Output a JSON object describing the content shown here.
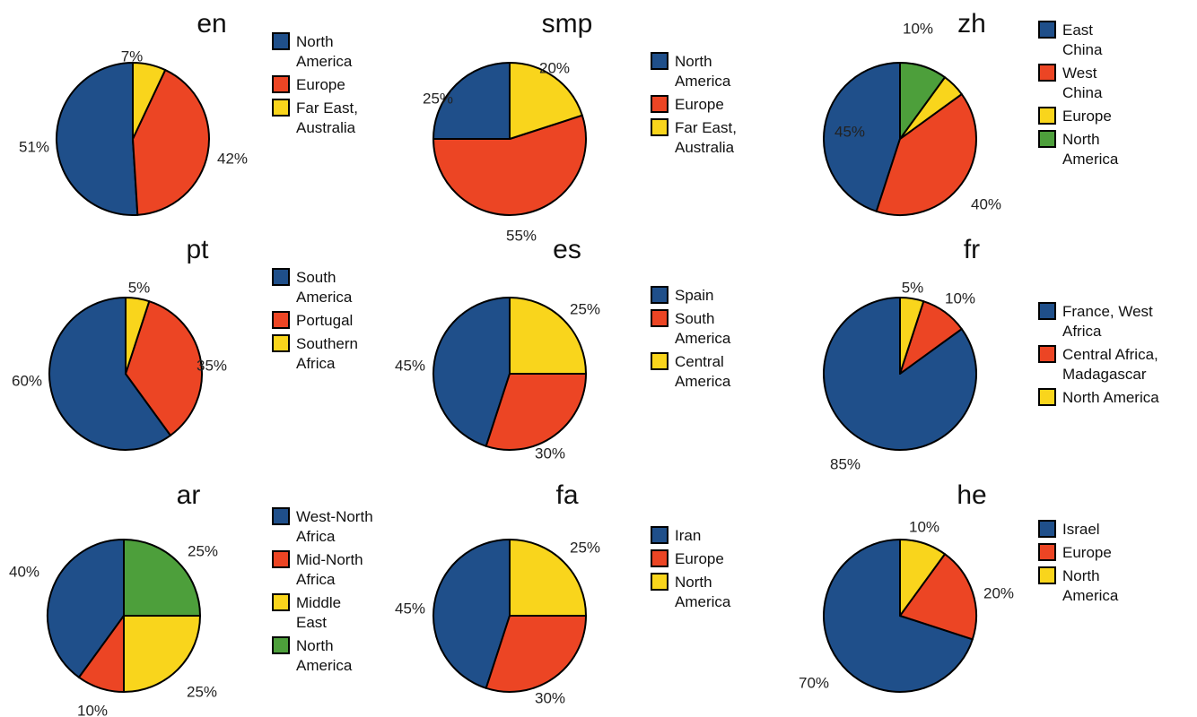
{
  "colors": {
    "blue": "#1f4f8a",
    "red": "#ec4524",
    "yellow": "#f9d51c",
    "green": "#4d9f3b"
  },
  "chart_data": [
    {
      "type": "pie",
      "title": "en",
      "slices": [
        {
          "label": "North America",
          "value": 51,
          "color": "blue",
          "display": "51%"
        },
        {
          "label": "Europe",
          "value": 42,
          "color": "red",
          "display": "42%"
        },
        {
          "label": "Far East, Australia",
          "value": 7,
          "color": "yellow",
          "display": "7%"
        }
      ],
      "legend": [
        {
          "lines": [
            "North",
            "America"
          ],
          "color": "blue"
        },
        {
          "lines": [
            "Europe"
          ],
          "color": "red"
        },
        {
          "lines": [
            "Far East,",
            "Australia"
          ],
          "color": "yellow"
        }
      ]
    },
    {
      "type": "pie",
      "title": "smp",
      "slices": [
        {
          "label": "North America",
          "value": 25,
          "color": "blue",
          "display": "25%"
        },
        {
          "label": "Europe",
          "value": 55,
          "color": "red",
          "display": "55%"
        },
        {
          "label": "Far East, Australia",
          "value": 20,
          "color": "yellow",
          "display": "20%"
        }
      ],
      "legend": [
        {
          "lines": [
            "North",
            "America"
          ],
          "color": "blue"
        },
        {
          "lines": [
            "Europe"
          ],
          "color": "red"
        },
        {
          "lines": [
            "Far East,",
            "Australia"
          ],
          "color": "yellow"
        }
      ]
    },
    {
      "type": "pie",
      "title": "zh",
      "slices": [
        {
          "label": "East China",
          "value": 45,
          "color": "blue",
          "display": "45%"
        },
        {
          "label": "West China",
          "value": 40,
          "color": "red",
          "display": "40%"
        },
        {
          "label": "Europe",
          "value": 5,
          "color": "yellow",
          "display": "5%"
        },
        {
          "label": "North America",
          "value": 10,
          "color": "green",
          "display": "10%"
        }
      ],
      "legend": [
        {
          "lines": [
            "East",
            "China"
          ],
          "color": "blue"
        },
        {
          "lines": [
            "West",
            "China"
          ],
          "color": "red"
        },
        {
          "lines": [
            "Europe"
          ],
          "color": "yellow"
        },
        {
          "lines": [
            "North",
            "America"
          ],
          "color": "green"
        }
      ]
    },
    {
      "type": "pie",
      "title": "pt",
      "slices": [
        {
          "label": "South America",
          "value": 60,
          "color": "blue",
          "display": "60%"
        },
        {
          "label": "Portugal",
          "value": 35,
          "color": "red",
          "display": "35%"
        },
        {
          "label": "Southern Africa",
          "value": 5,
          "color": "yellow",
          "display": "5%"
        }
      ],
      "legend": [
        {
          "lines": [
            "South",
            "America"
          ],
          "color": "blue"
        },
        {
          "lines": [
            "Portugal"
          ],
          "color": "red"
        },
        {
          "lines": [
            "Southern",
            "Africa"
          ],
          "color": "yellow"
        }
      ]
    },
    {
      "type": "pie",
      "title": "es",
      "slices": [
        {
          "label": "Spain",
          "value": 45,
          "color": "blue",
          "display": "45%"
        },
        {
          "label": "South America",
          "value": 30,
          "color": "red",
          "display": "30%"
        },
        {
          "label": "Central America",
          "value": 25,
          "color": "yellow",
          "display": "25%"
        }
      ],
      "legend": [
        {
          "lines": [
            "Spain"
          ],
          "color": "blue"
        },
        {
          "lines": [
            "South",
            "America"
          ],
          "color": "red"
        },
        {
          "lines": [
            "Central",
            "America"
          ],
          "color": "yellow"
        }
      ]
    },
    {
      "type": "pie",
      "title": "fr",
      "slices": [
        {
          "label": "France, West Africa",
          "value": 85,
          "color": "blue",
          "display": "85%"
        },
        {
          "label": "Central Africa, Madagascar",
          "value": 10,
          "color": "red",
          "display": "10%"
        },
        {
          "label": "North America",
          "value": 5,
          "color": "yellow",
          "display": "5%"
        }
      ],
      "legend": [
        {
          "lines": [
            "France, West",
            "Africa"
          ],
          "color": "blue"
        },
        {
          "lines": [
            "Central Africa,",
            "Madagascar"
          ],
          "color": "red"
        },
        {
          "lines": [
            "North America"
          ],
          "color": "yellow"
        }
      ]
    },
    {
      "type": "pie",
      "title": "ar",
      "slices": [
        {
          "label": "West-North Africa",
          "value": 40,
          "color": "blue",
          "display": "40%"
        },
        {
          "label": "Mid-North Africa",
          "value": 10,
          "color": "red",
          "display": "10%"
        },
        {
          "label": "Middle East",
          "value": 25,
          "color": "yellow",
          "display": "25%"
        },
        {
          "label": "North America",
          "value": 25,
          "color": "green",
          "display": "25%"
        }
      ],
      "legend": [
        {
          "lines": [
            "West-North",
            "Africa"
          ],
          "color": "blue"
        },
        {
          "lines": [
            "Mid-North",
            "Africa"
          ],
          "color": "red"
        },
        {
          "lines": [
            "Middle",
            "East"
          ],
          "color": "yellow"
        },
        {
          "lines": [
            "North",
            "America"
          ],
          "color": "green"
        }
      ]
    },
    {
      "type": "pie",
      "title": "fa",
      "slices": [
        {
          "label": "Iran",
          "value": 45,
          "color": "blue",
          "display": "45%"
        },
        {
          "label": "Europe",
          "value": 30,
          "color": "red",
          "display": "30%"
        },
        {
          "label": "North America",
          "value": 25,
          "color": "yellow",
          "display": "25%"
        }
      ],
      "legend": [
        {
          "lines": [
            "Iran"
          ],
          "color": "blue"
        },
        {
          "lines": [
            "Europe"
          ],
          "color": "red"
        },
        {
          "lines": [
            "North",
            "America"
          ],
          "color": "yellow"
        }
      ]
    },
    {
      "type": "pie",
      "title": "he",
      "slices": [
        {
          "label": "Israel",
          "value": 70,
          "color": "blue",
          "display": "70%"
        },
        {
          "label": "Europe",
          "value": 20,
          "color": "red",
          "display": "20%"
        },
        {
          "label": "North America",
          "value": 10,
          "color": "yellow",
          "display": "10%"
        }
      ],
      "legend": [
        {
          "lines": [
            "Israel"
          ],
          "color": "blue"
        },
        {
          "lines": [
            "Europe"
          ],
          "color": "red"
        },
        {
          "lines": [
            "North",
            "America"
          ],
          "color": "yellow"
        }
      ]
    }
  ]
}
